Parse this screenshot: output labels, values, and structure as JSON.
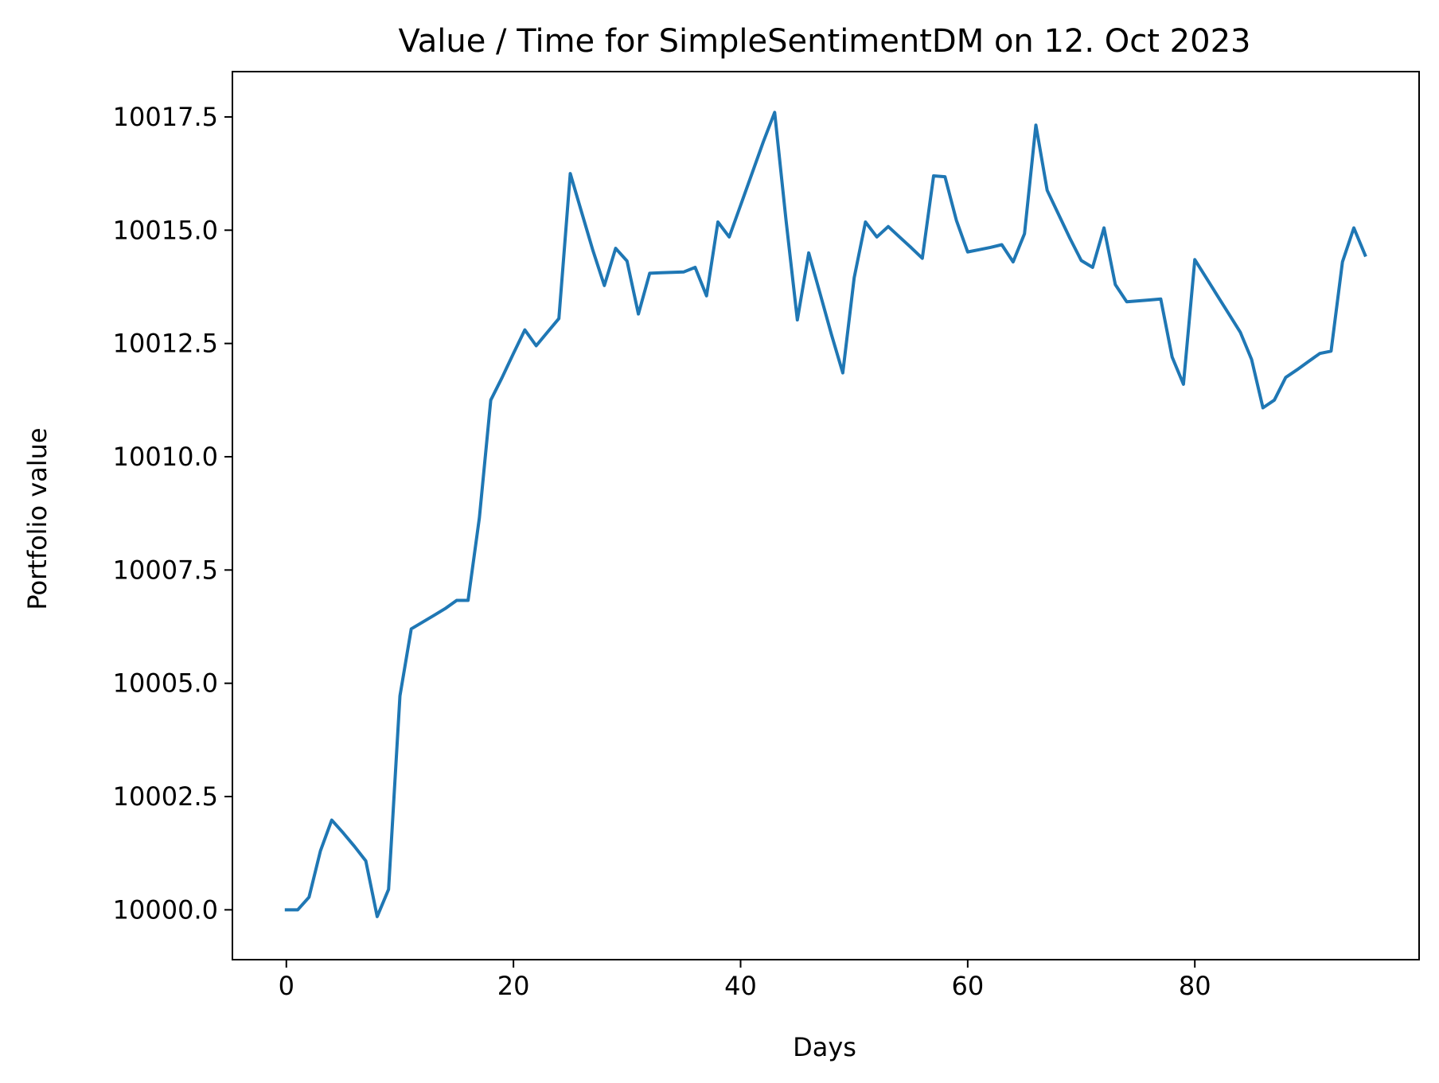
{
  "chart_data": {
    "type": "line",
    "title": "Value / Time for SimpleSentimentDM on 12. Oct 2023",
    "xlabel": "Days",
    "ylabel": "Portfolio value",
    "xlim": [
      -4.75,
      99.75
    ],
    "ylim": [
      9998.9,
      10018.5
    ],
    "x_ticks": [
      0,
      20,
      40,
      60,
      80
    ],
    "y_ticks": [
      10000.0,
      10002.5,
      10005.0,
      10007.5,
      10010.0,
      10012.5,
      10015.0,
      10017.5
    ],
    "x_tick_labels": [
      "0",
      "20",
      "40",
      "60",
      "80"
    ],
    "y_tick_labels": [
      "10000.0",
      "10002.5",
      "10005.0",
      "10007.5",
      "10010.0",
      "10012.5",
      "10015.0",
      "10017.5"
    ],
    "grid": false,
    "series": [
      {
        "color": "#1f77b4",
        "x": [
          0,
          1,
          2,
          3,
          4,
          5,
          6,
          7,
          8,
          9,
          10,
          11,
          12,
          13,
          14,
          15,
          16,
          17,
          18,
          19,
          20,
          21,
          22,
          23,
          24,
          25,
          26,
          27,
          28,
          29,
          30,
          31,
          32,
          33,
          34,
          35,
          36,
          37,
          38,
          39,
          40,
          41,
          42,
          43,
          44,
          45,
          46,
          47,
          48,
          49,
          50,
          51,
          52,
          53,
          54,
          55,
          56,
          57,
          58,
          59,
          60,
          61,
          62,
          63,
          64,
          65,
          66,
          67,
          68,
          69,
          70,
          71,
          72,
          73,
          74,
          75,
          76,
          77,
          78,
          79,
          80,
          81,
          82,
          83,
          84,
          85,
          86,
          87,
          88,
          89,
          90,
          91,
          92,
          93,
          94,
          95
        ],
        "y": [
          10000.0,
          10000.0,
          10000.28,
          10001.3,
          10001.98,
          10001.7,
          10001.4,
          10001.08,
          9999.85,
          10000.45,
          10004.72,
          10006.2,
          10006.35,
          10006.5,
          10006.65,
          10006.83,
          10006.83,
          10008.65,
          10011.25,
          10011.75,
          10012.28,
          10012.8,
          10012.45,
          10012.75,
          10013.05,
          10016.25,
          10015.4,
          10014.55,
          10013.78,
          10014.6,
          10014.32,
          10013.15,
          10014.05,
          10014.06,
          10014.07,
          10014.08,
          10014.18,
          10013.55,
          10015.18,
          10014.85,
          10015.55,
          10016.25,
          10016.95,
          10017.6,
          10015.22,
          10013.02,
          10014.5,
          10013.6,
          10012.7,
          10011.85,
          10013.95,
          10015.18,
          10014.85,
          10015.08,
          10014.85,
          10014.62,
          10014.38,
          10016.2,
          10016.18,
          10015.22,
          10014.52,
          10014.57,
          10014.62,
          10014.68,
          10014.3,
          10014.92,
          10017.32,
          10015.88,
          10015.35,
          10014.82,
          10014.33,
          10014.18,
          10015.05,
          10013.8,
          10013.42,
          10013.44,
          10013.46,
          10013.48,
          10012.2,
          10011.6,
          10014.35,
          10013.95,
          10013.55,
          10013.15,
          10012.75,
          10012.15,
          10011.08,
          10011.25,
          10011.75,
          10011.92,
          10012.1,
          10012.28,
          10012.33,
          10014.3,
          10015.05,
          10014.45
        ]
      }
    ]
  }
}
